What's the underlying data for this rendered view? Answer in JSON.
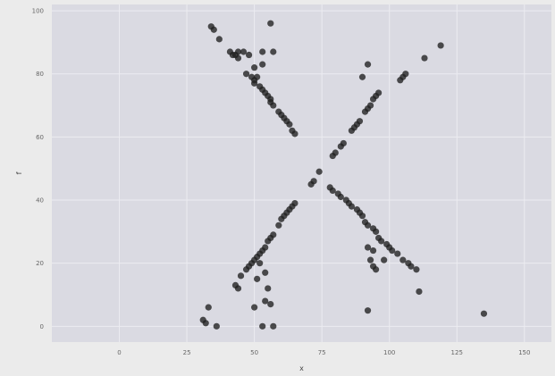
{
  "chart_data": {
    "type": "scatter",
    "title": "",
    "xlabel": "x",
    "ylabel": "f",
    "xlim": [
      -25,
      160
    ],
    "ylim": [
      -5,
      102
    ],
    "xticks": [
      0,
      25,
      50,
      75,
      100,
      125,
      150
    ],
    "xtick_labels": [
      "0",
      "25",
      "50",
      "75",
      "100",
      "125",
      "150"
    ],
    "yticks": [
      0,
      20,
      40,
      60,
      80,
      100
    ],
    "ytick_labels": [
      "0",
      "20",
      "40",
      "60",
      "80",
      "100"
    ],
    "grid": true,
    "legend": "none",
    "colors": {
      "panel": "#dadae2",
      "grid": "#ececf1",
      "point": "#1f1f1f",
      "background": "#ebebeb"
    },
    "points": [
      [
        34,
        95
      ],
      [
        35,
        94
      ],
      [
        37,
        91
      ],
      [
        41,
        87
      ],
      [
        42,
        86
      ],
      [
        43,
        86
      ],
      [
        44,
        87
      ],
      [
        46,
        87
      ],
      [
        48,
        86
      ],
      [
        44,
        85
      ],
      [
        47,
        80
      ],
      [
        49,
        79
      ],
      [
        50,
        78
      ],
      [
        50,
        77
      ],
      [
        51,
        79
      ],
      [
        52,
        76
      ],
      [
        53,
        75
      ],
      [
        54,
        74
      ],
      [
        55,
        73
      ],
      [
        56,
        72
      ],
      [
        56,
        71
      ],
      [
        57,
        70
      ],
      [
        59,
        68
      ],
      [
        60,
        67
      ],
      [
        61,
        66
      ],
      [
        62,
        65
      ],
      [
        63,
        64
      ],
      [
        64,
        62
      ],
      [
        65,
        61
      ],
      [
        53,
        87
      ],
      [
        57,
        87
      ],
      [
        53,
        83
      ],
      [
        50,
        82
      ],
      [
        56,
        96
      ],
      [
        31,
        2
      ],
      [
        32,
        1
      ],
      [
        33,
        6
      ],
      [
        36,
        0
      ],
      [
        43,
        13
      ],
      [
        44,
        12
      ],
      [
        45,
        16
      ],
      [
        47,
        18
      ],
      [
        48,
        19
      ],
      [
        49,
        20
      ],
      [
        50,
        21
      ],
      [
        51,
        22
      ],
      [
        52,
        23
      ],
      [
        53,
        24
      ],
      [
        54,
        25
      ],
      [
        55,
        27
      ],
      [
        56,
        28
      ],
      [
        57,
        29
      ],
      [
        59,
        32
      ],
      [
        60,
        34
      ],
      [
        61,
        35
      ],
      [
        62,
        36
      ],
      [
        63,
        37
      ],
      [
        64,
        38
      ],
      [
        65,
        39
      ],
      [
        52,
        20
      ],
      [
        54,
        17
      ],
      [
        51,
        15
      ],
      [
        55,
        12
      ],
      [
        54,
        8
      ],
      [
        56,
        7
      ],
      [
        50,
        6
      ],
      [
        53,
        0
      ],
      [
        57,
        0
      ],
      [
        71,
        45
      ],
      [
        72,
        46
      ],
      [
        74,
        49
      ],
      [
        79,
        54
      ],
      [
        80,
        55
      ],
      [
        82,
        57
      ],
      [
        83,
        58
      ],
      [
        86,
        62
      ],
      [
        87,
        63
      ],
      [
        88,
        64
      ],
      [
        89,
        65
      ],
      [
        91,
        68
      ],
      [
        92,
        69
      ],
      [
        93,
        70
      ],
      [
        94,
        72
      ],
      [
        95,
        73
      ],
      [
        96,
        74
      ],
      [
        90,
        79
      ],
      [
        92,
        83
      ],
      [
        104,
        78
      ],
      [
        105,
        79
      ],
      [
        106,
        80
      ],
      [
        113,
        85
      ],
      [
        119,
        89
      ],
      [
        78,
        44
      ],
      [
        79,
        43
      ],
      [
        81,
        42
      ],
      [
        82,
        41
      ],
      [
        84,
        40
      ],
      [
        85,
        39
      ],
      [
        86,
        38
      ],
      [
        88,
        37
      ],
      [
        89,
        36
      ],
      [
        90,
        35
      ],
      [
        91,
        33
      ],
      [
        92,
        32
      ],
      [
        94,
        31
      ],
      [
        95,
        30
      ],
      [
        96,
        28
      ],
      [
        97,
        27
      ],
      [
        99,
        26
      ],
      [
        100,
        25
      ],
      [
        101,
        24
      ],
      [
        103,
        23
      ],
      [
        105,
        21
      ],
      [
        107,
        20
      ],
      [
        108,
        19
      ],
      [
        110,
        18
      ],
      [
        92,
        25
      ],
      [
        94,
        24
      ],
      [
        93,
        21
      ],
      [
        94,
        19
      ],
      [
        95,
        18
      ],
      [
        98,
        21
      ],
      [
        92,
        5
      ],
      [
        111,
        11
      ],
      [
        135,
        4
      ]
    ]
  }
}
